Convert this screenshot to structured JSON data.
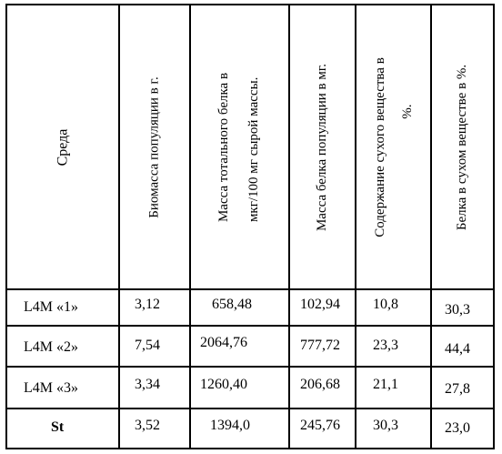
{
  "table": {
    "headers": [
      {
        "key": "env",
        "label": "Среда"
      },
      {
        "key": "biomass",
        "label": "Биомасса популяции в г."
      },
      {
        "key": "protein_total",
        "label_line1": "Масса тотального белка в",
        "label_line2": "мкг/100 мг сырой массы."
      },
      {
        "key": "protein_pop",
        "label": "Масса белка популяции в мг."
      },
      {
        "key": "dry",
        "label_line1": "Содержание сухого вещества в",
        "label_line2": "%."
      },
      {
        "key": "protein_dry",
        "label": "Белка в сухом веществе в %."
      }
    ],
    "rows": [
      {
        "env": "L4M «1»",
        "biomass": "3,12",
        "protein_total": "658,48",
        "protein_pop": "102,94",
        "dry": "10,8",
        "protein_dry": "30,3"
      },
      {
        "env": "L4M «2»",
        "biomass": "7,54",
        "protein_total": "2064,76",
        "protein_pop": "777,72",
        "dry": "23,3",
        "protein_dry": "44,4"
      },
      {
        "env": "L4M «3»",
        "biomass": "3,34",
        "protein_total": "1260,40",
        "protein_pop": "206,68",
        "dry": "21,1",
        "protein_dry": "27,8"
      },
      {
        "env": "St",
        "biomass": "3,52",
        "protein_total": "1394,0",
        "protein_pop": "245,76",
        "dry": "30,3",
        "protein_dry": "23,0"
      }
    ]
  }
}
